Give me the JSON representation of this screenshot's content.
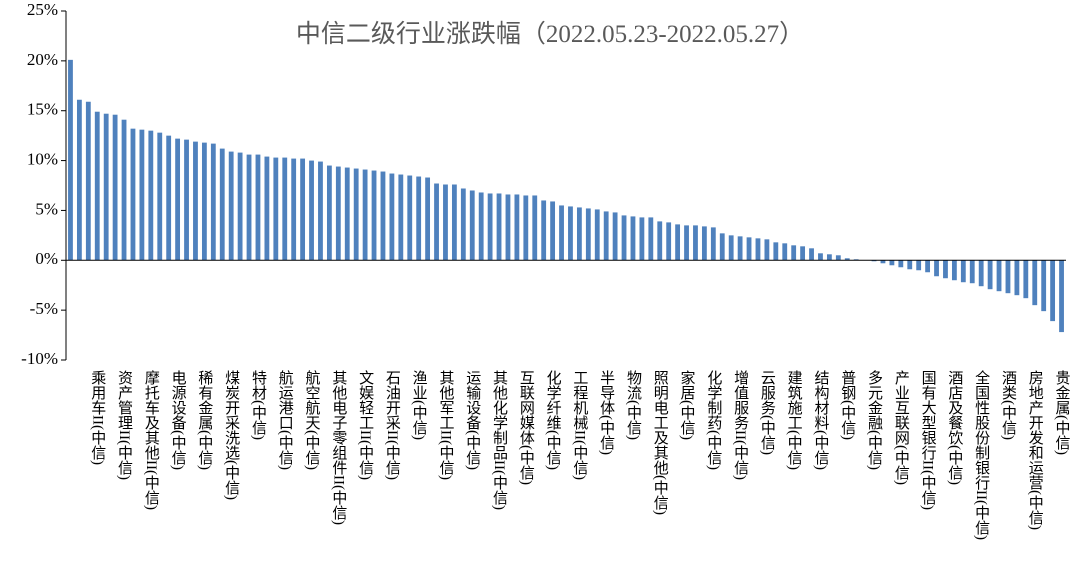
{
  "chart_data": {
    "type": "bar",
    "title": "中信二级行业涨跌幅（2022.05.23-2022.05.27）",
    "categories": [
      null,
      null,
      null,
      "乘用车II(中信)",
      null,
      null,
      "资产管理II(中信)",
      null,
      null,
      "摩托车及其他II(中信)",
      null,
      null,
      "电源设备(中信)",
      null,
      null,
      "稀有金属(中信)",
      null,
      null,
      "煤炭开采洗选(中信)",
      null,
      null,
      "特材(中信)",
      null,
      null,
      "航运港口(中信)",
      null,
      null,
      "航空航天(中信)",
      null,
      null,
      "其他电子零组件II(中信)",
      null,
      null,
      "文娱轻工II(中信)",
      null,
      null,
      "石油开采II(中信)",
      null,
      null,
      "渔业(中信)",
      null,
      null,
      "其他军工II(中信)",
      null,
      null,
      "运输设备(中信)",
      null,
      null,
      "其他化学制品II(中信)",
      null,
      null,
      "互联网媒体(中信)",
      null,
      null,
      "化学纤维(中信)",
      null,
      null,
      "工程机械II(中信)",
      null,
      null,
      "半导体(中信)",
      null,
      null,
      "物流(中信)",
      null,
      null,
      "照明电工及其他(中信)",
      null,
      null,
      "家居(中信)",
      null,
      null,
      "化学制药(中信)",
      null,
      null,
      "增值服务II(中信)",
      null,
      null,
      "云服务(中信)",
      null,
      null,
      "建筑施工(中信)",
      null,
      null,
      "结构材料(中信)",
      null,
      null,
      "普钢(中信)",
      null,
      null,
      "多元金融(中信)",
      null,
      null,
      "产业互联网(中信)",
      null,
      null,
      "国有大型银行II(中信)",
      null,
      null,
      "酒店及餐饮(中信)",
      null,
      null,
      "全国性股份制银行II(中信)",
      null,
      null,
      "酒类(中信)",
      null,
      null,
      "房地产开发和运营(中信)",
      null,
      null,
      "贵金属(中信)"
    ],
    "values": [
      20.1,
      16.1,
      15.9,
      14.9,
      14.7,
      14.6,
      14.1,
      13.2,
      13.1,
      13.0,
      12.8,
      12.5,
      12.2,
      12.1,
      11.9,
      11.8,
      11.7,
      11.2,
      10.9,
      10.8,
      10.6,
      10.6,
      10.4,
      10.3,
      10.3,
      10.2,
      10.2,
      10.0,
      9.9,
      9.5,
      9.4,
      9.3,
      9.2,
      9.1,
      9.0,
      8.9,
      8.7,
      8.6,
      8.5,
      8.4,
      8.3,
      7.7,
      7.6,
      7.6,
      7.2,
      7.0,
      6.8,
      6.7,
      6.7,
      6.6,
      6.6,
      6.5,
      6.5,
      6.0,
      5.9,
      5.5,
      5.4,
      5.3,
      5.2,
      5.1,
      4.9,
      4.8,
      4.5,
      4.4,
      4.3,
      4.3,
      3.9,
      3.8,
      3.6,
      3.5,
      3.5,
      3.4,
      3.3,
      2.7,
      2.5,
      2.4,
      2.3,
      2.2,
      2.1,
      1.8,
      1.7,
      1.5,
      1.4,
      1.2,
      0.7,
      0.6,
      0.5,
      0.2,
      0.1,
      0.0,
      -0.1,
      -0.3,
      -0.5,
      -0.7,
      -0.9,
      -1.0,
      -1.2,
      -1.6,
      -1.8,
      -2.0,
      -2.2,
      -2.3,
      -2.6,
      -2.9,
      -3.1,
      -3.3,
      -3.5,
      -3.8,
      -4.5,
      -5.1,
      -6.1,
      -7.2
    ],
    "color": "#4f81bd",
    "ylim": [
      -10,
      25
    ],
    "yticks": [
      {
        "value": -10,
        "label": "-10%"
      },
      {
        "value": -5,
        "label": "-5%"
      },
      {
        "value": 0,
        "label": "0%"
      },
      {
        "value": 5,
        "label": "5%"
      },
      {
        "value": 10,
        "label": "10%"
      },
      {
        "value": 15,
        "label": "15%"
      },
      {
        "value": 20,
        "label": "20%"
      },
      {
        "value": 25,
        "label": "25%"
      }
    ],
    "grid": false
  }
}
